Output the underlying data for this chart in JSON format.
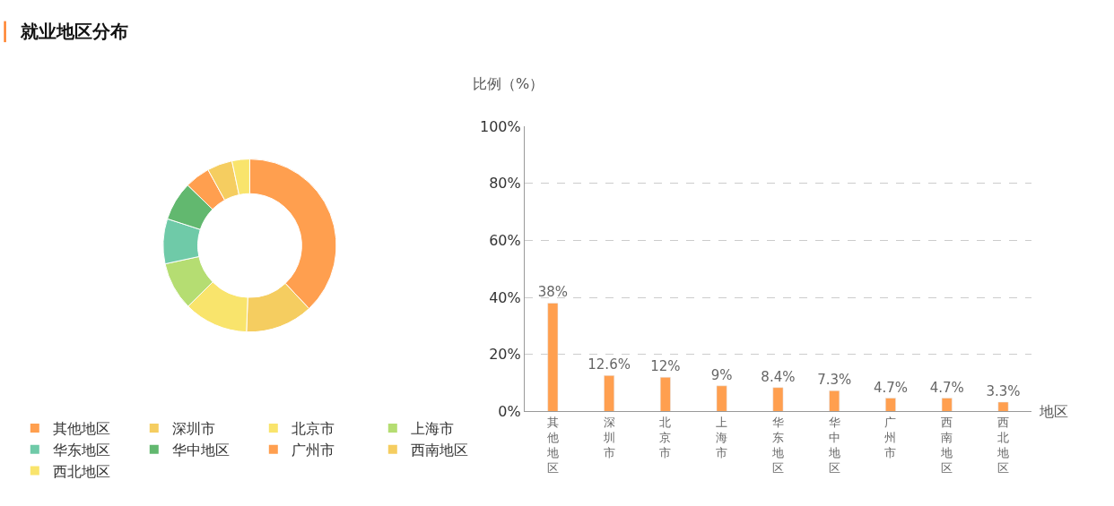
{
  "chart_data": [
    {
      "type": "donut",
      "title": "就业地区分布",
      "categories": [
        "其他地区",
        "深圳市",
        "北京市",
        "上海市",
        "华东地区",
        "华中地区",
        "广州市",
        "西南地区",
        "西北地区"
      ],
      "values": [
        38,
        12.6,
        12,
        9,
        8.4,
        7.3,
        4.7,
        4.7,
        3.3
      ],
      "colors": [
        "#ff9f4f",
        "#f5cd60",
        "#f9e46c",
        "#b5dd72",
        "#6fcaa8",
        "#62b86f",
        "#ff9f4f",
        "#f5cd60",
        "#f9e46c"
      ],
      "legend": "bottom left"
    },
    {
      "type": "bar",
      "ylabel": "比例（%）",
      "xlabel": "地区",
      "categories": [
        "其他地区",
        "深圳市",
        "北京市",
        "上海市",
        "华东地区",
        "华中地区",
        "广州市",
        "西南地区",
        "西北地区"
      ],
      "values": [
        38,
        12.6,
        12,
        9,
        8.4,
        7.3,
        4.7,
        4.7,
        3.3
      ],
      "value_labels": [
        "38%",
        "12.6%",
        "12%",
        "9%",
        "8.4%",
        "7.3%",
        "4.7%",
        "4.7%",
        "3.3%"
      ],
      "color": "#ff9f4f",
      "ylim": [
        0,
        100
      ],
      "yticks": [
        {
          "value": 0,
          "label": "0%"
        },
        {
          "value": 20,
          "label": "20%"
        },
        {
          "value": 40,
          "label": "40%"
        },
        {
          "value": 60,
          "label": "60%"
        },
        {
          "value": 80,
          "label": "80%"
        },
        {
          "value": 100,
          "label": "100%"
        }
      ],
      "grid": "y",
      "legend": false
    }
  ]
}
